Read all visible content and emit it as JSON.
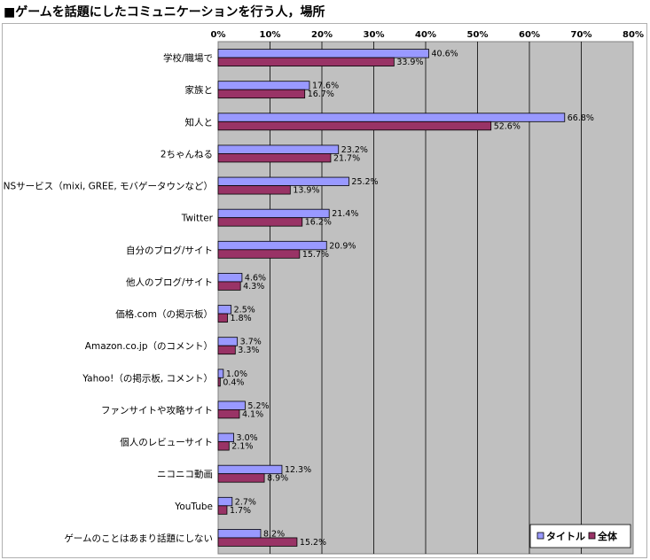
{
  "page": {
    "title": "■ゲームを話題にしたコミュニケーションを行う人，場所"
  },
  "chart_data": {
    "type": "bar",
    "orientation": "horizontal",
    "title": "■ゲームを話題にしたコミュニケーションを行う人，場所",
    "xlim": [
      0,
      80
    ],
    "ticks": [
      "0%",
      "10%",
      "20%",
      "30%",
      "40%",
      "50%",
      "60%",
      "70%",
      "80%"
    ],
    "tick_values": [
      0,
      10,
      20,
      30,
      40,
      50,
      60,
      70,
      80
    ],
    "grid": true,
    "legend_position": "bottom-right",
    "categories": [
      "学校/職場で",
      "家族と",
      "知人と",
      "2ちゃんねる",
      "SNSサービス（mixi, GREE, モバゲータウンなど）",
      "Twitter",
      "自分のブログ/サイト",
      "他人のブログ/サイト",
      "価格.com（の掲示板）",
      "Amazon.co.jp（のコメント）",
      "Yahoo!（の掲示板, コメント）",
      "ファンサイトや攻略サイト",
      "個人のレビューサイト",
      "ニコニコ動画",
      "YouTube",
      "ゲームのことはあまり話題にしない"
    ],
    "series": [
      {
        "name": "タイトル",
        "color": "#9999ff",
        "values": [
          40.6,
          17.6,
          66.8,
          23.2,
          25.2,
          21.4,
          20.9,
          4.6,
          2.5,
          3.7,
          1.0,
          5.2,
          3.0,
          12.3,
          2.7,
          8.2
        ],
        "labels": [
          "40.6%",
          "17.6%",
          "66.8%",
          "23.2%",
          "25.2%",
          "21.4%",
          "20.9%",
          "4.6%",
          "2.5%",
          "3.7%",
          "1.0%",
          "5.2%",
          "3.0%",
          "12.3%",
          "2.7%",
          "8.2%"
        ]
      },
      {
        "name": "全体",
        "color": "#993366",
        "values": [
          33.9,
          16.7,
          52.6,
          21.7,
          13.9,
          16.2,
          15.7,
          4.3,
          1.8,
          3.3,
          0.4,
          4.1,
          2.1,
          8.9,
          1.7,
          15.2
        ],
        "labels": [
          "33.9%",
          "16.7%",
          "52.6%",
          "21.7%",
          "13.9%",
          "16.2%",
          "15.7%",
          "4.3%",
          "1.8%",
          "3.3%",
          "0.4%",
          "4.1%",
          "2.1%",
          "8.9%",
          "1.7%",
          "15.2%"
        ]
      }
    ],
    "plot_background": "#c0c0c0"
  }
}
